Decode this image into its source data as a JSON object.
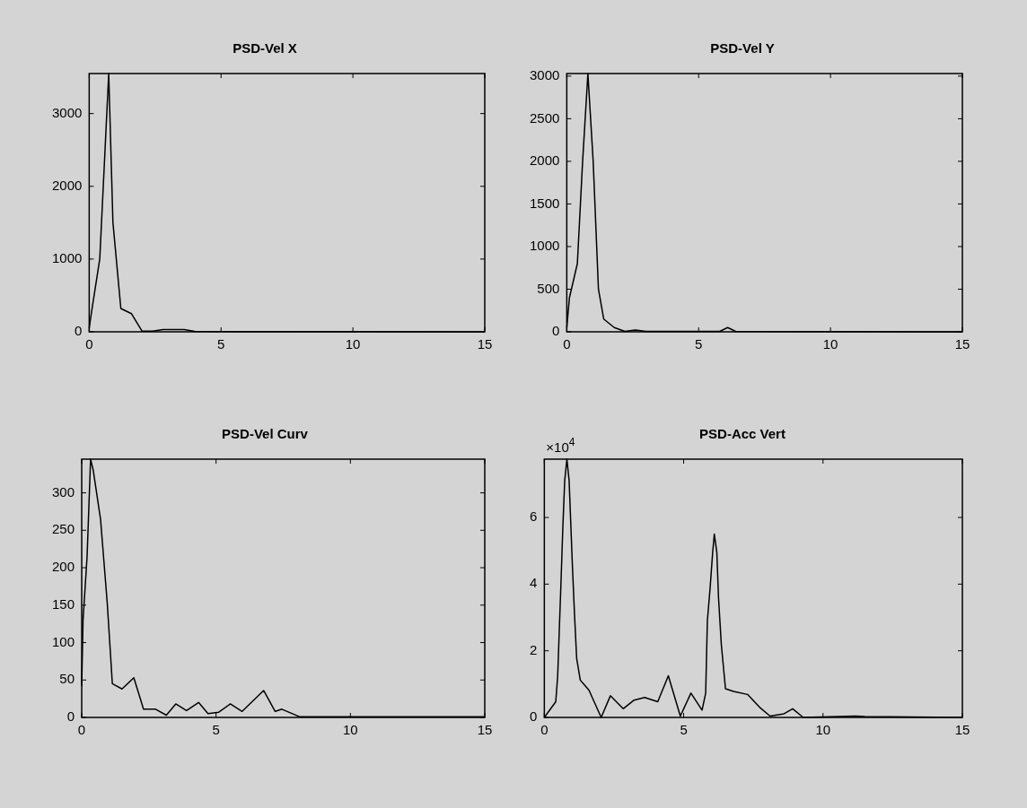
{
  "chart_data": [
    {
      "type": "line",
      "title": "PSD-Vel X",
      "color": "#000000",
      "grid": false,
      "legend": false,
      "x": [
        0,
        0.1,
        0.4,
        0.6,
        0.74,
        0.9,
        1.2,
        1.6,
        2.0,
        2.4,
        2.8,
        3.2,
        3.6,
        4.0,
        15
      ],
      "values": [
        50,
        300,
        1000,
        2500,
        3550,
        1500,
        320,
        250,
        10,
        10,
        30,
        30,
        30,
        5,
        0
      ],
      "xlim": [
        0,
        15
      ],
      "xticks": [
        0,
        5,
        10,
        15
      ],
      "ylim": [
        0,
        3550
      ],
      "yticks": [
        0,
        1000,
        2000,
        3000
      ]
    },
    {
      "type": "line",
      "title": "PSD-Vel Y",
      "color": "#000000",
      "grid": false,
      "legend": false,
      "x": [
        0,
        0.1,
        0.4,
        0.6,
        0.8,
        1.0,
        1.2,
        1.4,
        1.8,
        2.2,
        2.6,
        3.0,
        5.8,
        6.1,
        6.4,
        15
      ],
      "values": [
        50,
        400,
        800,
        2000,
        3030,
        2000,
        500,
        150,
        50,
        5,
        20,
        5,
        5,
        50,
        5,
        0
      ],
      "xlim": [
        0,
        15
      ],
      "xticks": [
        0,
        5,
        10,
        15
      ],
      "ylim": [
        0,
        3030
      ],
      "yticks": [
        0,
        500,
        1000,
        1500,
        2000,
        2500,
        3000
      ]
    },
    {
      "type": "line",
      "title": "PSD-Vel Curv",
      "color": "#000000",
      "grid": false,
      "legend": false,
      "x": [
        0,
        0.05,
        0.2,
        0.33,
        0.43,
        0.7,
        0.95,
        1.14,
        1.5,
        1.94,
        2.3,
        2.75,
        3.15,
        3.5,
        3.9,
        4.35,
        4.7,
        5.1,
        5.53,
        5.97,
        6.77,
        7.2,
        7.45,
        8.1,
        15
      ],
      "values": [
        42,
        130,
        215,
        345,
        330,
        265,
        153,
        45,
        38,
        53,
        11,
        11,
        3,
        18,
        9,
        20,
        5,
        7,
        18,
        8,
        36,
        8,
        11,
        1,
        1
      ],
      "xlim": [
        0,
        15
      ],
      "xticks": [
        0,
        5,
        10,
        15
      ],
      "ylim": [
        0,
        345
      ],
      "yticks": [
        0,
        50,
        100,
        150,
        200,
        250,
        300
      ]
    },
    {
      "type": "line",
      "title": "PSD-Acc Vert",
      "color": "#000000",
      "grid": false,
      "legend": false,
      "annotations": [
        "×10$^{4}$"
      ],
      "x": [
        0,
        0.41,
        0.48,
        0.54,
        0.6,
        0.66,
        0.73,
        0.81,
        0.89,
        0.95,
        1.01,
        1.08,
        1.16,
        1.29,
        1.6,
        2.04,
        2.37,
        2.83,
        3.22,
        3.6,
        4.07,
        4.45,
        4.88,
        5.26,
        5.66,
        5.79,
        5.85,
        5.95,
        6.04,
        6.1,
        6.19,
        6.25,
        6.35,
        6.5,
        6.79,
        7.29,
        7.73,
        8.1,
        8.6,
        8.91,
        9.29,
        11.16,
        11.5,
        15
      ],
      "values": [
        0,
        0.47,
        1.25,
        2.7,
        4.1,
        5.6,
        7.1,
        7.75,
        7.1,
        5.8,
        4.5,
        3.15,
        1.77,
        1.12,
        0.82,
        0,
        0.65,
        0.26,
        0.52,
        0.6,
        0.47,
        1.25,
        0.04,
        0.73,
        0.22,
        0.73,
        2.9,
        3.9,
        4.95,
        5.5,
        4.95,
        3.6,
        2.2,
        0.86,
        0.78,
        0.69,
        0.3,
        0.04,
        0.11,
        0.26,
        0,
        0.04,
        0.03,
        0
      ],
      "xlim": [
        0,
        15
      ],
      "xticks": [
        0,
        5,
        10,
        15
      ],
      "ylim": [
        0,
        7.75
      ],
      "yticks": [
        0,
        2,
        4,
        6
      ]
    }
  ]
}
